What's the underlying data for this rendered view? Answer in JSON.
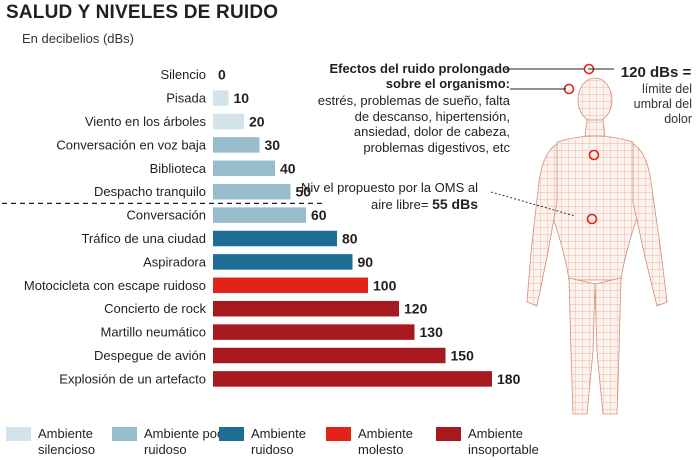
{
  "title": "SALUD Y NIVELES DE RUIDO",
  "subtitle": "En decibelios (dBs)",
  "chart_data": {
    "type": "bar",
    "orientation": "horizontal",
    "categories": [
      "Silencio",
      "Pisada",
      "Viento en los árboles",
      "Conversación en voz baja",
      "Biblioteca",
      "Despacho tranquilo",
      "Conversación",
      "Tráfico de una ciudad",
      "Aspiradora",
      "Motocicleta con escape ruidoso",
      "Concierto de rock",
      "Martillo neumático",
      "Despegue de avión",
      "Explosión de un artefacto"
    ],
    "values": [
      0,
      10,
      20,
      30,
      40,
      50,
      60,
      80,
      90,
      100,
      120,
      130,
      150,
      180
    ],
    "value_labels": [
      "0",
      "10",
      "20",
      "30",
      "40",
      "50",
      "60",
      "80",
      "90",
      "100",
      "120",
      "130",
      "150",
      "180"
    ],
    "bar_category": [
      "silencioso",
      "silencioso",
      "silencioso",
      "poco_ruidoso",
      "poco_ruidoso",
      "poco_ruidoso",
      "poco_ruidoso",
      "ruidoso",
      "ruidoso",
      "molesto",
      "insoportable",
      "insoportable",
      "insoportable",
      "insoportable"
    ],
    "xlim": [
      0,
      180
    ],
    "grid": false,
    "reference_line": {
      "value": 55,
      "between_categories": [
        "Despacho tranquilo",
        "Conversación"
      ],
      "style": "dashed"
    }
  },
  "legend": [
    {
      "key": "silencioso",
      "label": "Ambiente silencioso",
      "color": "#d3e3ea"
    },
    {
      "key": "poco_ruidoso",
      "label": "Ambiente poco ruidoso",
      "color": "#97bccb"
    },
    {
      "key": "ruidoso",
      "label": "Ambiente ruidoso",
      "color": "#1d6d94"
    },
    {
      "key": "molesto",
      "label": "Ambiente molesto",
      "color": "#e2231a"
    },
    {
      "key": "insoportable",
      "label": "Ambiente insoportable",
      "color": "#a6191e"
    }
  ],
  "annotations": {
    "effects_heading": "Efectos del ruido prolongado sobre el organismo:",
    "effects_text": "estrés, problemas de sueño, falta de descanso, hipertensión, ansiedad, dolor de cabeza, problemas digestivos, etc",
    "oms_text": "Niv el propuesto por la OMS al aire libre=",
    "oms_value": "55 dBs",
    "threshold_value": "120 dBs =",
    "threshold_text": "límite del umbral del dolor"
  },
  "colors": {
    "marker": "#e2231a",
    "body_mesh": "#e8b9a5"
  },
  "icons": {
    "figure": "human-body-mesh-icon",
    "marker": "circle-marker-icon"
  }
}
